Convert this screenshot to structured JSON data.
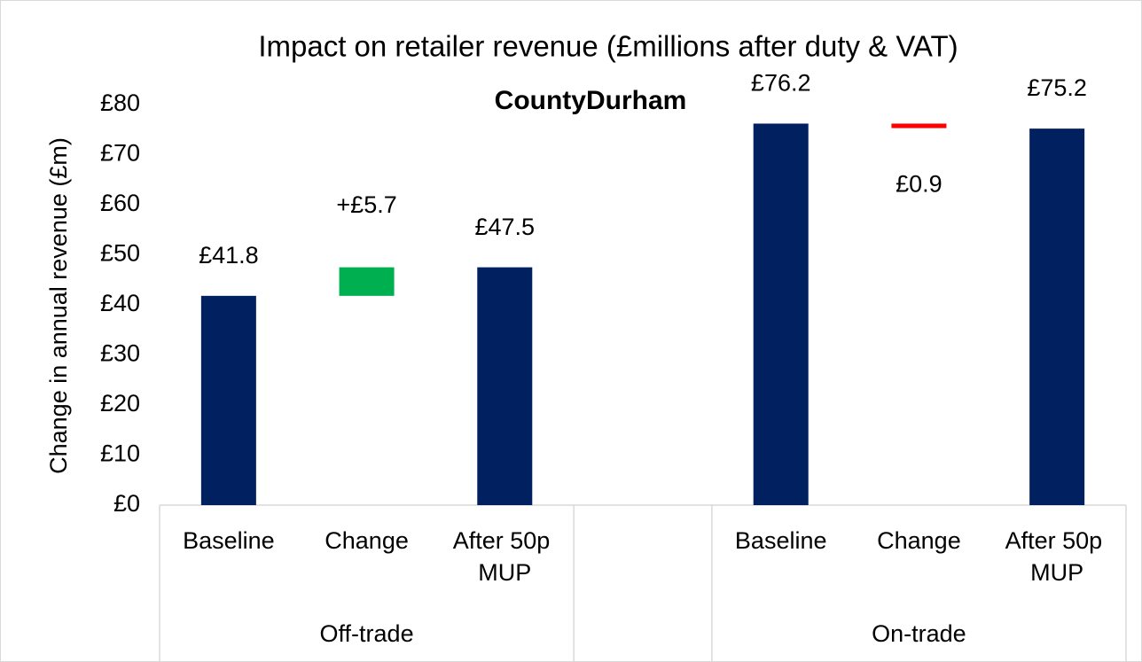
{
  "chart_data": {
    "type": "waterfall",
    "title": "Impact on retailer revenue (£millions after duty & VAT)",
    "subtitle": "CountyDurham",
    "y_label": "Change in annual revenue (£m)",
    "categories": [
      "Baseline",
      "Change",
      "After 50p MUP",
      null,
      "Baseline",
      "Change",
      "After 50p MUP"
    ],
    "groups": [
      "Off-trade",
      "Off-trade",
      "Off-trade",
      null,
      "On-trade",
      "On-trade",
      "On-trade"
    ],
    "measure": [
      "absolute",
      "relative",
      "absolute",
      null,
      "absolute",
      "relative",
      "absolute"
    ],
    "values": [
      41.8,
      5.7,
      47.5,
      null,
      76.2,
      -0.9,
      75.2
    ],
    "value_labels": [
      "£41.8",
      "+£5.7",
      "£47.5",
      null,
      "£76.2",
      "£0.9",
      "£75.2"
    ],
    "colors": {
      "total": "#002060",
      "increase": "#00b050",
      "decrease": "#ff0000"
    },
    "ylim": [
      0,
      80
    ],
    "yticks": [
      {
        "value": 0,
        "label": "£0"
      },
      {
        "value": 10,
        "label": "£10"
      },
      {
        "value": 20,
        "label": "£20"
      },
      {
        "value": 30,
        "label": "£30"
      },
      {
        "value": 40,
        "label": "£40"
      },
      {
        "value": 50,
        "label": "£50"
      },
      {
        "value": 60,
        "label": "£60"
      },
      {
        "value": 70,
        "label": "£70"
      },
      {
        "value": 80,
        "label": "£80"
      }
    ],
    "grid": false
  }
}
